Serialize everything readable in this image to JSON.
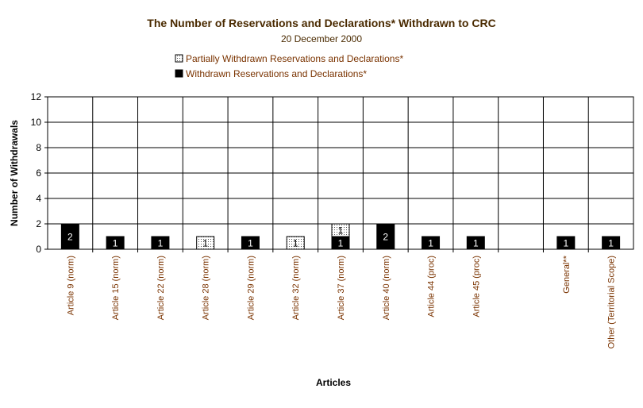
{
  "chart_data": {
    "type": "bar",
    "stacked": true,
    "title": "The Number of Reservations and Declarations* Withdrawn to CRC",
    "subtitle": "20 December 2000",
    "xlabel": "Articles",
    "ylabel": "Number of Withdrawals",
    "ylim": [
      0,
      12
    ],
    "yticks": [
      "0",
      "2",
      "4",
      "6",
      "8",
      "10",
      "12"
    ],
    "grid": true,
    "legend_position": "top",
    "categories": [
      "Article 9 (norm)",
      "Article 15 (norm)",
      "Article 22 (norm)",
      "Article 28 (norm)",
      "Article 29 (norm)",
      "Article 32 (norm)",
      "Article 37 (norm)",
      "Article 40 (norm)",
      "Article 44 (proc)",
      "Article 45 (proc)",
      "",
      "General**",
      "Other (Territorial Scope)"
    ],
    "series": [
      {
        "name": "Withdrawn Reservations and Declarations*",
        "color": "#000000",
        "values": [
          2,
          1,
          1,
          0,
          1,
          0,
          1,
          2,
          1,
          1,
          0,
          1,
          1
        ],
        "labels": [
          "2",
          "1",
          "1",
          "",
          "1",
          "",
          "1",
          "2",
          "1",
          "1",
          "",
          "1",
          "1"
        ]
      },
      {
        "name": "Partially Withdrawn Reservations and Declarations*",
        "color": "#ffffff",
        "pattern": "dotted",
        "values": [
          0,
          0,
          0,
          1,
          0,
          1,
          1,
          0,
          0,
          0,
          0,
          0,
          0
        ],
        "labels": [
          "",
          "",
          "",
          "1",
          "",
          "1",
          "1",
          "",
          "",
          "",
          "",
          "",
          ""
        ]
      }
    ],
    "legend_order": [
      1,
      0
    ]
  }
}
